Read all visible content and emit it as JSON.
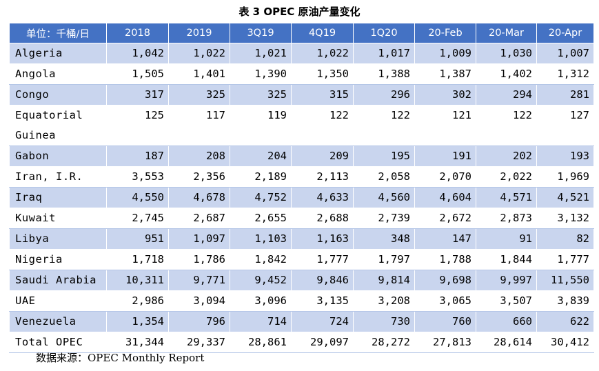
{
  "caption": "表 3 OPEC 原油产量变化",
  "header": [
    "单位：千桶/日",
    "2018",
    "2019",
    "3Q19",
    "4Q19",
    "1Q20",
    "20-Feb",
    "20-Mar",
    "20-Apr"
  ],
  "rows": [
    [
      "Algeria",
      "1,042",
      "1,022",
      "1,021",
      "1,022",
      "1,017",
      "1,009",
      "1,030",
      "1,007"
    ],
    [
      "Angola",
      "1,505",
      "1,401",
      "1,390",
      "1,350",
      "1,388",
      "1,387",
      "1,402",
      "1,312"
    ],
    [
      "Congo",
      "317",
      "325",
      "325",
      "315",
      "296",
      "302",
      "294",
      "281"
    ],
    [
      "Equatorial Guinea",
      "125",
      "117",
      "119",
      "122",
      "122",
      "121",
      "122",
      "127"
    ],
    [
      "Gabon",
      "187",
      "208",
      "204",
      "209",
      "195",
      "191",
      "202",
      "193"
    ],
    [
      "Iran, I.R.",
      "3,553",
      "2,356",
      "2,189",
      "2,113",
      "2,058",
      "2,070",
      "2,022",
      "1,969"
    ],
    [
      "Iraq",
      "4,550",
      "4,678",
      "4,752",
      "4,633",
      "4,560",
      "4,604",
      "4,571",
      "4,521"
    ],
    [
      "Kuwait",
      "2,745",
      "2,687",
      "2,655",
      "2,688",
      "2,739",
      "2,672",
      "2,873",
      "3,132"
    ],
    [
      "Libya",
      "951",
      "1,097",
      "1,103",
      "1,163",
      "348",
      "147",
      "91",
      "82"
    ],
    [
      "Nigeria",
      "1,718",
      "1,786",
      "1,842",
      "1,777",
      "1,797",
      "1,788",
      "1,844",
      "1,777"
    ],
    [
      "Saudi Arabia",
      "10,311",
      "9,771",
      "9,452",
      "9,846",
      "9,814",
      "9,698",
      "9,997",
      "11,550"
    ],
    [
      "UAE",
      "2,986",
      "3,094",
      "3,096",
      "3,135",
      "3,208",
      "3,065",
      "3,507",
      "3,839"
    ],
    [
      "Venezuela",
      "1,354",
      "796",
      "714",
      "724",
      "730",
      "760",
      "660",
      "622"
    ],
    [
      "Total OPEC",
      "31,344",
      "29,337",
      "28,861",
      "29,097",
      "28,272",
      "27,813",
      "28,614",
      "30,412"
    ]
  ],
  "source": "数据来源：OPEC Monthly Report",
  "colors": {
    "header_bg": "#4472c4",
    "band_bg": "#c9d5ee",
    "header_text": "#ffffff"
  }
}
